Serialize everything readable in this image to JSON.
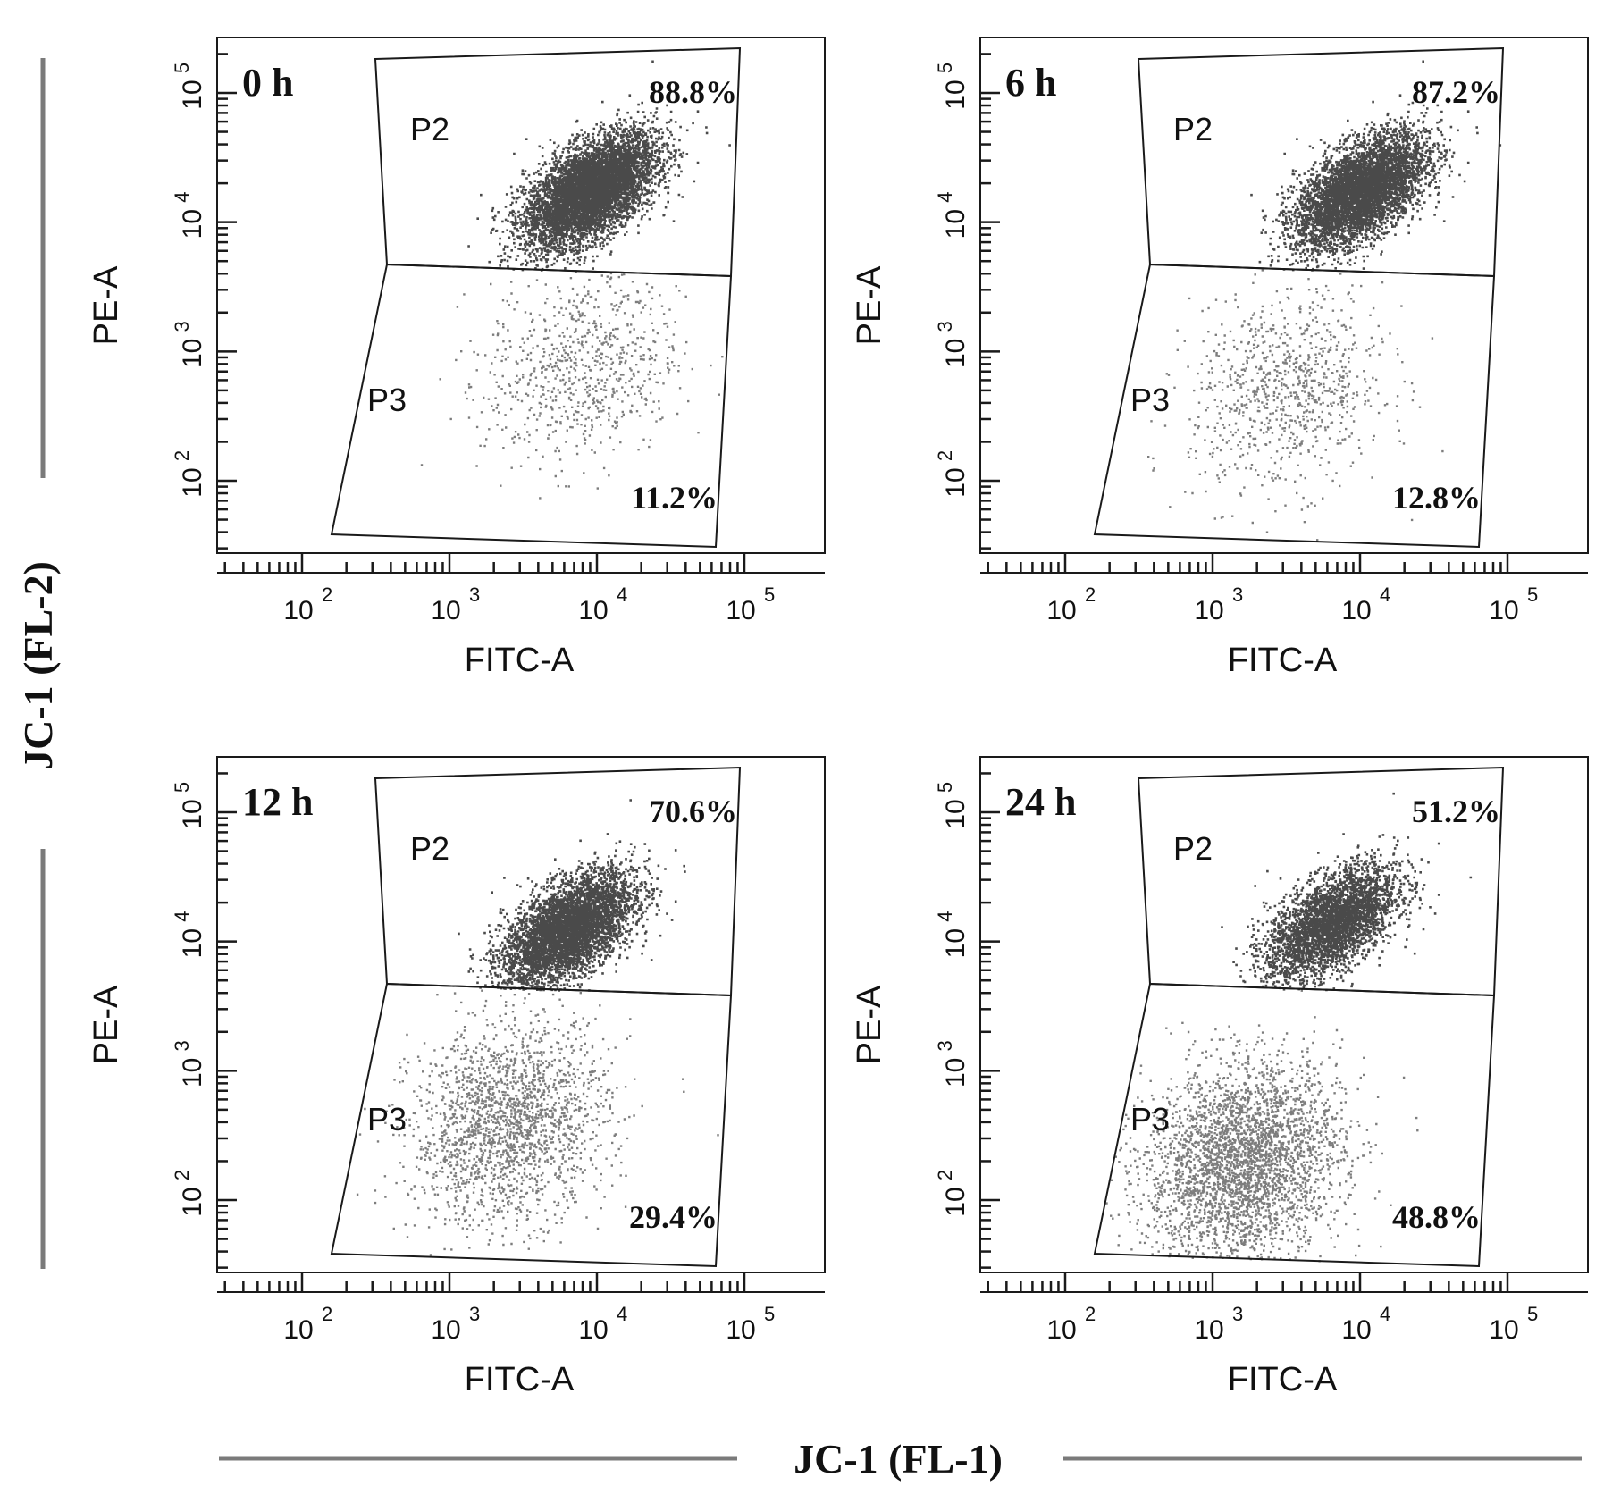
{
  "figure": {
    "y_caption": "JC-1 (FL-2)",
    "x_caption": "JC-1 (FL-1)",
    "line_color": "#7a7a7a"
  },
  "colors": {
    "p2_points": "#4a4a4a",
    "p3_points": "#7d7d7d",
    "gate_line": "#1a1a1a",
    "frame": "#1a1a1a",
    "text": "#111111"
  },
  "chart_data": [
    {
      "type": "scatter",
      "panel_label": "0 h",
      "xlabel": "FITC-A",
      "ylabel": "PE-A",
      "x_scale": "log",
      "y_scale": "log",
      "x_ticks": [
        "10^2",
        "10^3",
        "10^4",
        "10^5"
      ],
      "y_ticks": [
        "10^2",
        "10^3",
        "10^4",
        "10^5"
      ],
      "gates": [
        {
          "name": "P2",
          "percent": "88.8%"
        },
        {
          "name": "P3",
          "percent": "11.2%"
        }
      ],
      "population_centers_log10": {
        "p2": [
          3.95,
          4.25
        ],
        "p3": [
          3.9,
          2.9
        ]
      },
      "population_fraction": {
        "p2": 0.888,
        "p3": 0.112
      }
    },
    {
      "type": "scatter",
      "panel_label": "6 h",
      "xlabel": "FITC-A",
      "ylabel": "PE-A",
      "x_scale": "log",
      "y_scale": "log",
      "x_ticks": [
        "10^2",
        "10^3",
        "10^4",
        "10^5"
      ],
      "y_ticks": [
        "10^2",
        "10^3",
        "10^4",
        "10^5"
      ],
      "gates": [
        {
          "name": "P2",
          "percent": "87.2%"
        },
        {
          "name": "P3",
          "percent": "12.8%"
        }
      ],
      "population_centers_log10": {
        "p2": [
          4.0,
          4.25
        ],
        "p3": [
          3.5,
          2.7
        ]
      },
      "population_fraction": {
        "p2": 0.872,
        "p3": 0.128
      }
    },
    {
      "type": "scatter",
      "panel_label": "12 h",
      "xlabel": "FITC-A",
      "ylabel": "PE-A",
      "x_scale": "log",
      "y_scale": "log",
      "x_ticks": [
        "10^2",
        "10^3",
        "10^4",
        "10^5"
      ],
      "y_ticks": [
        "10^2",
        "10^3",
        "10^4",
        "10^5"
      ],
      "gates": [
        {
          "name": "P2",
          "percent": "70.6%"
        },
        {
          "name": "P3",
          "percent": "29.4%"
        }
      ],
      "population_centers_log10": {
        "p2": [
          3.8,
          4.1
        ],
        "p3": [
          3.4,
          2.6
        ]
      },
      "population_fraction": {
        "p2": 0.706,
        "p3": 0.294
      }
    },
    {
      "type": "scatter",
      "panel_label": "24 h",
      "xlabel": "FITC-A",
      "ylabel": "PE-A",
      "x_scale": "log",
      "y_scale": "log",
      "x_ticks": [
        "10^2",
        "10^3",
        "10^4",
        "10^5"
      ],
      "y_ticks": [
        "10^2",
        "10^3",
        "10^4",
        "10^5"
      ],
      "gates": [
        {
          "name": "P2",
          "percent": "51.2%"
        },
        {
          "name": "P3",
          "percent": "48.8%"
        }
      ],
      "population_centers_log10": {
        "p2": [
          3.8,
          4.15
        ],
        "p3": [
          3.2,
          2.3
        ]
      },
      "population_fraction": {
        "p2": 0.512,
        "p3": 0.488
      }
    }
  ]
}
